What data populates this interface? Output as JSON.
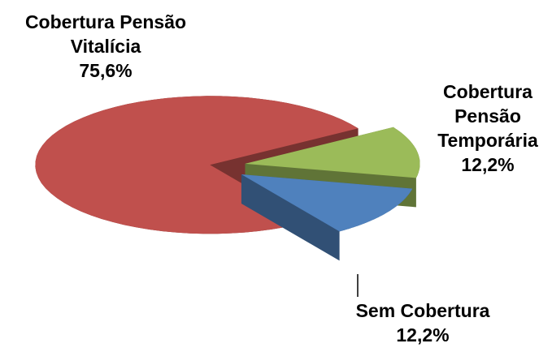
{
  "chart_data": {
    "type": "pie3d",
    "categories": [
      "Cobertura Pensão Vitalícia",
      "Cobertura Pensão Temporária",
      "Sem Cobertura"
    ],
    "values": [
      75.6,
      12.2,
      12.2
    ],
    "value_labels": [
      "75,6%",
      "12,2%",
      "12,2%"
    ],
    "colors": [
      "#c0504d",
      "#9bbb59",
      "#4f81bd"
    ]
  }
}
